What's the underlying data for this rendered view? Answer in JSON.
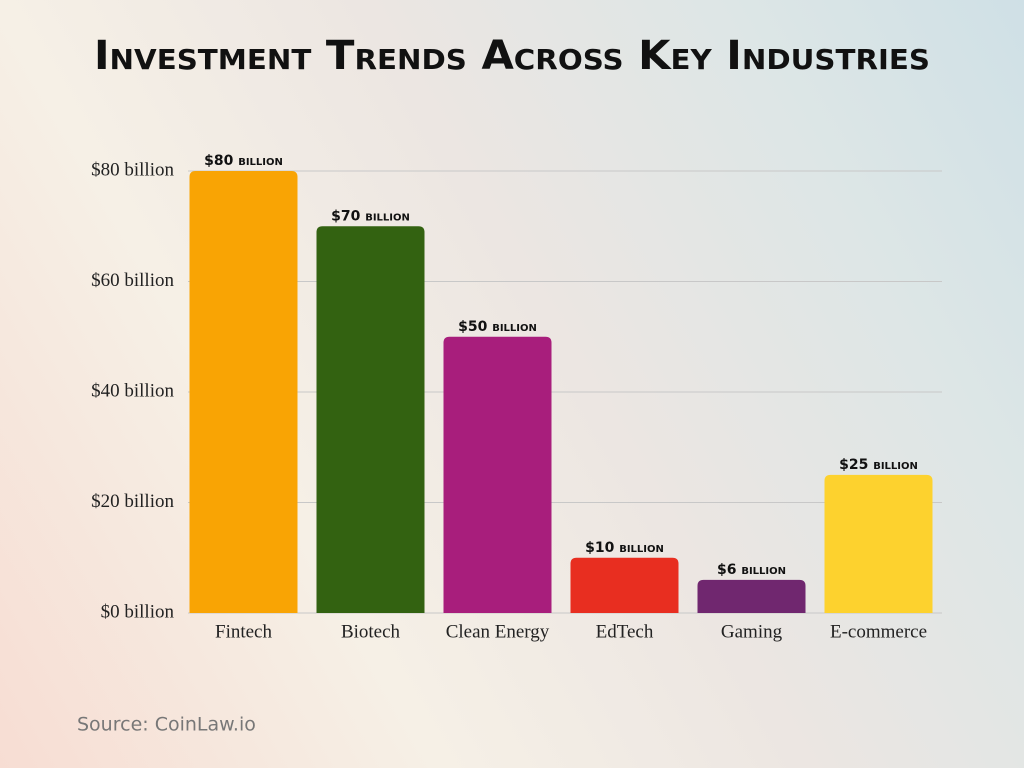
{
  "chart_data": {
    "type": "bar",
    "title": "Investment Trends Across Key Industries",
    "categories": [
      "Fintech",
      "Biotech",
      "Clean Energy",
      "EdTech",
      "Gaming",
      "E-commerce"
    ],
    "values": [
      80,
      70,
      50,
      10,
      6,
      25
    ],
    "value_labels": [
      "$80 billion",
      "$70 billion",
      "$50 billion",
      "$10 billion",
      "$6 billion",
      "$25 billion"
    ],
    "colors": [
      "#f9a404",
      "#336211",
      "#a81e7c",
      "#e82e20",
      "#70276f",
      "#fdd22e"
    ],
    "ylim": [
      0,
      80
    ],
    "yticks": [
      {
        "value": 0,
        "label": "$0 billion"
      },
      {
        "value": 20,
        "label": "$20 billion"
      },
      {
        "value": 40,
        "label": "$40 billion"
      },
      {
        "value": 60,
        "label": "$60 billion"
      },
      {
        "value": 80,
        "label": "$80 billion"
      }
    ],
    "grid": true,
    "source": "Source: CoinLaw.io"
  }
}
